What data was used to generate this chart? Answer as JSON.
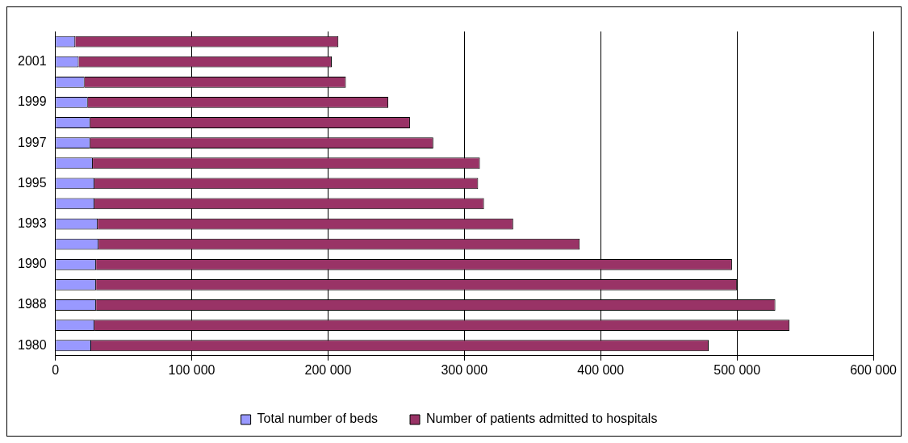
{
  "chart_data": {
    "type": "bar",
    "orientation": "horizontal",
    "stacked": true,
    "categories": [
      null,
      "2001",
      null,
      "1999",
      null,
      "1997",
      null,
      "1995",
      null,
      "1993",
      null,
      "1990",
      null,
      "1988",
      null,
      "1980"
    ],
    "series": [
      {
        "name": "Total number of beds",
        "color": "#9999ff",
        "values": [
          14600,
          17100,
          21400,
          23800,
          25600,
          25600,
          27500,
          28700,
          28700,
          31100,
          31700,
          29900,
          29900,
          29900,
          28700,
          26300
        ]
      },
      {
        "name": "Number of patients admitted to hospitals",
        "color": "#993366",
        "values": [
          193000,
          185600,
          191700,
          220400,
          234500,
          251600,
          283900,
          281400,
          285700,
          304700,
          352900,
          466400,
          470100,
          498200,
          509800,
          452900
        ]
      }
    ],
    "xlim": [
      0,
      600000
    ],
    "xticks": [
      0,
      {
        "value": 100000,
        "label": "100 000"
      },
      {
        "value": 200000,
        "label": "200 000"
      },
      {
        "value": 300000,
        "label": "300 000"
      },
      {
        "value": 400000,
        "label": "400 000"
      },
      {
        "value": 500000,
        "label": "500 000"
      },
      {
        "value": 600000,
        "label": "600 000"
      }
    ],
    "grid": "x",
    "legend": "bottom"
  }
}
